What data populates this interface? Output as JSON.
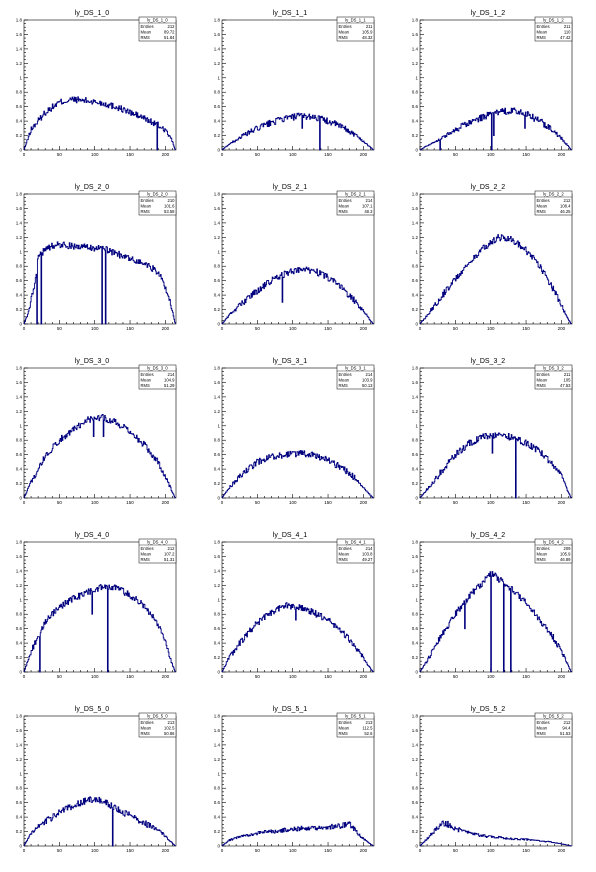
{
  "colors": {
    "histogram": "#00007f",
    "axis": "#000000",
    "background": "#ffffff"
  },
  "axis_labels": {
    "x_ticks": [
      "0",
      "50",
      "100",
      "150",
      "200"
    ],
    "y_ticks": [
      "0",
      "0.2",
      "0.4",
      "0.6",
      "0.8",
      "1",
      "1.2",
      "1.4",
      "1.6",
      "1.8"
    ]
  },
  "stats_labels": {
    "entries": "Entries",
    "mean": "Mean",
    "rms": "RMS"
  },
  "chart_data": [
    {
      "type": "histogram",
      "title": "ly_DS_1_0",
      "xlim": [
        0,
        215
      ],
      "ylim": [
        0,
        1.8
      ],
      "xticks": [
        0,
        50,
        100,
        150,
        200
      ],
      "yticks": [
        0,
        0.2,
        0.4,
        0.6,
        0.8,
        1,
        1.2,
        1.4,
        1.6,
        1.8
      ],
      "stats": {
        "name": "ly_DS_1_0",
        "entries": "212",
        "mean": "89.72",
        "rms": "51.84"
      },
      "shape": {
        "x": [
          0,
          10,
          30,
          50,
          70,
          90,
          110,
          130,
          150,
          170,
          190,
          200,
          210,
          214
        ],
        "y": [
          0.0,
          0.28,
          0.52,
          0.66,
          0.7,
          0.68,
          0.65,
          0.6,
          0.52,
          0.44,
          0.34,
          0.28,
          0.12,
          0.0
        ]
      },
      "dips": [
        [
          188,
          0.0
        ]
      ]
    },
    {
      "type": "histogram",
      "title": "ly_DS_1_1",
      "xlim": [
        0,
        215
      ],
      "ylim": [
        0,
        1.8
      ],
      "xticks": [
        0,
        50,
        100,
        150,
        200
      ],
      "yticks": [
        0,
        0.2,
        0.4,
        0.6,
        0.8,
        1,
        1.2,
        1.4,
        1.6,
        1.8
      ],
      "stats": {
        "name": "ly_DS_1_1",
        "entries": "211",
        "mean": "105.9",
        "rms": "48.32"
      },
      "shape": {
        "x": [
          0,
          10,
          30,
          50,
          70,
          90,
          110,
          130,
          150,
          170,
          190,
          200,
          210,
          214
        ],
        "y": [
          0.0,
          0.08,
          0.2,
          0.3,
          0.38,
          0.44,
          0.47,
          0.46,
          0.4,
          0.32,
          0.2,
          0.12,
          0.04,
          0.0
        ]
      },
      "dips": [
        [
          138,
          0.0
        ],
        [
          113,
          0.3
        ]
      ]
    },
    {
      "type": "histogram",
      "title": "ly_DS_1_2",
      "xlim": [
        0,
        215
      ],
      "ylim": [
        0,
        1.8
      ],
      "xticks": [
        0,
        50,
        100,
        150,
        200
      ],
      "yticks": [
        0,
        0.2,
        0.4,
        0.6,
        0.8,
        1,
        1.2,
        1.4,
        1.6,
        1.8
      ],
      "stats": {
        "name": "ly_DS_1_2",
        "entries": "211",
        "mean": "110",
        "rms": "47.42"
      },
      "shape": {
        "x": [
          0,
          10,
          30,
          50,
          70,
          90,
          110,
          130,
          150,
          170,
          190,
          200,
          210,
          214
        ],
        "y": [
          0.0,
          0.06,
          0.16,
          0.28,
          0.38,
          0.46,
          0.52,
          0.55,
          0.5,
          0.4,
          0.26,
          0.16,
          0.05,
          0.0
        ]
      },
      "dips": [
        [
          28,
          0.0
        ],
        [
          101,
          0.0
        ],
        [
          104,
          0.2
        ],
        [
          148,
          0.3
        ]
      ]
    },
    {
      "type": "histogram",
      "title": "ly_DS_2_0",
      "xlim": [
        0,
        215
      ],
      "ylim": [
        0,
        1.8
      ],
      "xticks": [
        0,
        50,
        100,
        150,
        200
      ],
      "yticks": [
        0,
        0.2,
        0.4,
        0.6,
        0.8,
        1,
        1.2,
        1.4,
        1.6,
        1.8
      ],
      "stats": {
        "name": "ly_DS_2_0",
        "entries": "210",
        "mean": "101.6",
        "rms": "53.58"
      },
      "shape": {
        "x": [
          0,
          6,
          14,
          20,
          30,
          50,
          70,
          90,
          110,
          130,
          150,
          170,
          190,
          200,
          210,
          214
        ],
        "y": [
          0.0,
          0.15,
          0.5,
          0.9,
          1.05,
          1.1,
          1.08,
          1.06,
          1.05,
          0.98,
          0.9,
          0.84,
          0.72,
          0.5,
          0.2,
          0.0
        ]
      },
      "dips": [
        [
          18,
          0.0
        ],
        [
          24,
          0.0
        ],
        [
          110,
          0.0
        ],
        [
          115,
          0.0
        ]
      ]
    },
    {
      "type": "histogram",
      "title": "ly_DS_2_1",
      "xlim": [
        0,
        215
      ],
      "ylim": [
        0,
        1.8
      ],
      "xticks": [
        0,
        50,
        100,
        150,
        200
      ],
      "yticks": [
        0,
        0.2,
        0.4,
        0.6,
        0.8,
        1,
        1.2,
        1.4,
        1.6,
        1.8
      ],
      "stats": {
        "name": "ly_DS_2_1",
        "entries": "214",
        "mean": "107.1",
        "rms": "48.3"
      },
      "shape": {
        "x": [
          0,
          10,
          30,
          50,
          70,
          90,
          110,
          130,
          150,
          170,
          190,
          200,
          210,
          214
        ],
        "y": [
          0.0,
          0.12,
          0.3,
          0.46,
          0.6,
          0.7,
          0.76,
          0.74,
          0.64,
          0.5,
          0.3,
          0.18,
          0.05,
          0.0
        ]
      },
      "dips": [
        [
          85,
          0.3
        ]
      ]
    },
    {
      "type": "histogram",
      "title": "ly_DS_2_2",
      "xlim": [
        0,
        215
      ],
      "ylim": [
        0,
        1.8
      ],
      "xticks": [
        0,
        50,
        100,
        150,
        200
      ],
      "yticks": [
        0,
        0.2,
        0.4,
        0.6,
        0.8,
        1,
        1.2,
        1.4,
        1.6,
        1.8
      ],
      "stats": {
        "name": "ly_DS_2_2",
        "entries": "212",
        "mean": "108.4",
        "rms": "46.25"
      },
      "shape": {
        "x": [
          0,
          10,
          30,
          50,
          70,
          90,
          110,
          130,
          150,
          170,
          190,
          200,
          210,
          214
        ],
        "y": [
          0.0,
          0.12,
          0.38,
          0.62,
          0.85,
          1.05,
          1.2,
          1.18,
          1.02,
          0.8,
          0.46,
          0.26,
          0.06,
          0.0
        ]
      },
      "dips": []
    },
    {
      "type": "histogram",
      "title": "ly_DS_3_0",
      "xlim": [
        0,
        215
      ],
      "ylim": [
        0,
        1.8
      ],
      "xticks": [
        0,
        50,
        100,
        150,
        200
      ],
      "yticks": [
        0,
        0.2,
        0.4,
        0.6,
        0.8,
        1,
        1.2,
        1.4,
        1.6,
        1.8
      ],
      "stats": {
        "name": "ly_DS_3_0",
        "entries": "214",
        "mean": "104.9",
        "rms": "51.29"
      },
      "shape": {
        "x": [
          0,
          10,
          30,
          50,
          70,
          90,
          110,
          130,
          150,
          170,
          190,
          200,
          210,
          214
        ],
        "y": [
          0.0,
          0.22,
          0.58,
          0.8,
          0.95,
          1.08,
          1.12,
          1.05,
          0.92,
          0.74,
          0.5,
          0.3,
          0.08,
          0.0
        ]
      },
      "dips": [
        [
          98,
          0.85
        ],
        [
          112,
          0.85
        ]
      ]
    },
    {
      "type": "histogram",
      "title": "ly_DS_3_1",
      "xlim": [
        0,
        215
      ],
      "ylim": [
        0,
        1.8
      ],
      "xticks": [
        0,
        50,
        100,
        150,
        200
      ],
      "yticks": [
        0,
        0.2,
        0.4,
        0.6,
        0.8,
        1,
        1.2,
        1.4,
        1.6,
        1.8
      ],
      "stats": {
        "name": "ly_DS_3_1",
        "entries": "214",
        "mean": "103.9",
        "rms": "50.13"
      },
      "shape": {
        "x": [
          0,
          10,
          30,
          50,
          70,
          90,
          110,
          130,
          150,
          170,
          190,
          200,
          210,
          214
        ],
        "y": [
          0.0,
          0.14,
          0.34,
          0.5,
          0.57,
          0.6,
          0.62,
          0.6,
          0.52,
          0.42,
          0.26,
          0.14,
          0.04,
          0.0
        ]
      },
      "dips": []
    },
    {
      "type": "histogram",
      "title": "ly_DS_3_2",
      "xlim": [
        0,
        215
      ],
      "ylim": [
        0,
        1.8
      ],
      "xticks": [
        0,
        50,
        100,
        150,
        200
      ],
      "yticks": [
        0,
        0.2,
        0.4,
        0.6,
        0.8,
        1,
        1.2,
        1.4,
        1.6,
        1.8
      ],
      "stats": {
        "name": "ly_DS_3_2",
        "entries": "211",
        "mean": "105",
        "rms": "47.53"
      },
      "shape": {
        "x": [
          0,
          10,
          30,
          50,
          70,
          90,
          110,
          130,
          150,
          170,
          190,
          200,
          210,
          214
        ],
        "y": [
          0.0,
          0.12,
          0.36,
          0.6,
          0.76,
          0.85,
          0.88,
          0.84,
          0.76,
          0.64,
          0.44,
          0.3,
          0.08,
          0.0
        ]
      },
      "dips": [
        [
          102,
          0.62
        ],
        [
          135,
          0.0
        ]
      ]
    },
    {
      "type": "histogram",
      "title": "ly_DS_4_0",
      "xlim": [
        0,
        215
      ],
      "ylim": [
        0,
        1.8
      ],
      "xticks": [
        0,
        50,
        100,
        150,
        200
      ],
      "yticks": [
        0,
        0.2,
        0.4,
        0.6,
        0.8,
        1,
        1.2,
        1.4,
        1.6,
        1.8
      ],
      "stats": {
        "name": "ly_DS_4_0",
        "entries": "212",
        "mean": "107.2",
        "rms": "51.31"
      },
      "shape": {
        "x": [
          0,
          10,
          30,
          50,
          70,
          90,
          110,
          130,
          150,
          170,
          190,
          200,
          210,
          214
        ],
        "y": [
          0.0,
          0.28,
          0.7,
          0.9,
          1.02,
          1.1,
          1.18,
          1.18,
          1.06,
          0.92,
          0.66,
          0.42,
          0.1,
          0.0
        ]
      },
      "dips": [
        [
          22,
          0.0
        ],
        [
          118,
          0.0
        ],
        [
          96,
          0.8
        ]
      ]
    },
    {
      "type": "histogram",
      "title": "ly_DS_4_1",
      "xlim": [
        0,
        215
      ],
      "ylim": [
        0,
        1.8
      ],
      "xticks": [
        0,
        50,
        100,
        150,
        200
      ],
      "yticks": [
        0,
        0.2,
        0.4,
        0.6,
        0.8,
        1,
        1.2,
        1.4,
        1.6,
        1.8
      ],
      "stats": {
        "name": "ly_DS_4_1",
        "entries": "214",
        "mean": "103.8",
        "rms": "49.27"
      },
      "shape": {
        "x": [
          0,
          10,
          30,
          50,
          70,
          90,
          110,
          130,
          150,
          170,
          190,
          200,
          210,
          214
        ],
        "y": [
          0.0,
          0.2,
          0.46,
          0.68,
          0.82,
          0.92,
          0.9,
          0.82,
          0.72,
          0.56,
          0.34,
          0.2,
          0.05,
          0.0
        ]
      },
      "dips": [
        [
          104,
          0.72
        ]
      ]
    },
    {
      "type": "histogram",
      "title": "ly_DS_4_2",
      "xlim": [
        0,
        215
      ],
      "ylim": [
        0,
        1.8
      ],
      "xticks": [
        0,
        50,
        100,
        150,
        200
      ],
      "yticks": [
        0,
        0.2,
        0.4,
        0.6,
        0.8,
        1,
        1.2,
        1.4,
        1.6,
        1.8
      ],
      "stats": {
        "name": "ly_DS_4_2",
        "entries": "209",
        "mean": "105.9",
        "rms": "46.89"
      },
      "shape": {
        "x": [
          0,
          10,
          30,
          50,
          70,
          90,
          100,
          110,
          130,
          150,
          170,
          190,
          200,
          210,
          214
        ],
        "y": [
          0.0,
          0.15,
          0.5,
          0.8,
          1.05,
          1.25,
          1.38,
          1.3,
          1.15,
          0.95,
          0.72,
          0.46,
          0.3,
          0.08,
          0.0
        ]
      },
      "dips": [
        [
          100,
          0.0
        ],
        [
          118,
          0.0
        ],
        [
          128,
          0.0
        ],
        [
          63,
          0.6
        ]
      ]
    },
    {
      "type": "histogram",
      "title": "ly_DS_5_0",
      "xlim": [
        0,
        215
      ],
      "ylim": [
        0,
        1.8
      ],
      "xticks": [
        0,
        50,
        100,
        150,
        200
      ],
      "yticks": [
        0,
        0.2,
        0.4,
        0.6,
        0.8,
        1,
        1.2,
        1.4,
        1.6,
        1.8
      ],
      "stats": {
        "name": "ly_DS_5_0",
        "entries": "213",
        "mean": "102.5",
        "rms": "50.86"
      },
      "shape": {
        "x": [
          0,
          10,
          30,
          50,
          70,
          90,
          110,
          130,
          150,
          170,
          190,
          200,
          210,
          214
        ],
        "y": [
          0.0,
          0.18,
          0.34,
          0.46,
          0.56,
          0.64,
          0.64,
          0.52,
          0.42,
          0.32,
          0.22,
          0.14,
          0.04,
          0.0
        ]
      },
      "dips": [
        [
          125,
          0.0
        ]
      ]
    },
    {
      "type": "histogram",
      "title": "ly_DS_5_1",
      "xlim": [
        0,
        215
      ],
      "ylim": [
        0,
        1.8
      ],
      "xticks": [
        0,
        50,
        100,
        150,
        200
      ],
      "yticks": [
        0,
        0.2,
        0.4,
        0.6,
        0.8,
        1,
        1.2,
        1.4,
        1.6,
        1.8
      ],
      "stats": {
        "name": "ly_DS_5_1",
        "entries": "213",
        "mean": "112.5",
        "rms": "52.6"
      },
      "shape": {
        "x": [
          0,
          10,
          30,
          50,
          70,
          90,
          110,
          130,
          150,
          170,
          180,
          190,
          200,
          210,
          214
        ],
        "y": [
          0.0,
          0.08,
          0.14,
          0.18,
          0.2,
          0.22,
          0.24,
          0.25,
          0.26,
          0.28,
          0.32,
          0.2,
          0.1,
          0.03,
          0.0
        ]
      },
      "dips": []
    },
    {
      "type": "histogram",
      "title": "ly_DS_5_2",
      "xlim": [
        0,
        215
      ],
      "ylim": [
        0,
        1.8
      ],
      "xticks": [
        0,
        50,
        100,
        150,
        200
      ],
      "yticks": [
        0,
        0.2,
        0.4,
        0.6,
        0.8,
        1,
        1.2,
        1.4,
        1.6,
        1.8
      ],
      "stats": {
        "name": "ly_DS_5_2",
        "entries": "212",
        "mean": "94.4",
        "rms": "51.53"
      },
      "shape": {
        "x": [
          0,
          10,
          20,
          30,
          40,
          50,
          70,
          90,
          110,
          130,
          150,
          170,
          190,
          200,
          210,
          214
        ],
        "y": [
          0.0,
          0.1,
          0.2,
          0.32,
          0.3,
          0.24,
          0.18,
          0.14,
          0.12,
          0.1,
          0.09,
          0.07,
          0.05,
          0.03,
          0.01,
          0.0
        ]
      },
      "dips": []
    }
  ]
}
